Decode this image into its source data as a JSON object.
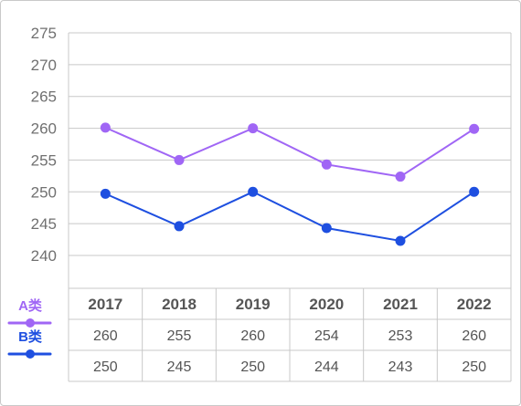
{
  "chart_data": {
    "type": "line",
    "categories": [
      "2017",
      "2018",
      "2019",
      "2020",
      "2021",
      "2022"
    ],
    "ylim": [
      240,
      275
    ],
    "yticks": [
      240,
      245,
      250,
      255,
      260,
      265,
      270,
      275
    ],
    "grid": true,
    "legend_position": "left, beside table",
    "series": [
      {
        "name": "A类",
        "color": "#a066f5",
        "values": [
          260,
          255,
          260,
          254,
          253,
          260
        ],
        "plotted": [
          260.1,
          255.0,
          260.0,
          254.3,
          252.4,
          259.9
        ]
      },
      {
        "name": "B类",
        "color": "#1e4fe0",
        "values": [
          250,
          245,
          250,
          244,
          243,
          250
        ],
        "plotted": [
          249.7,
          244.6,
          250.0,
          244.3,
          242.3,
          250.0
        ]
      }
    ]
  }
}
